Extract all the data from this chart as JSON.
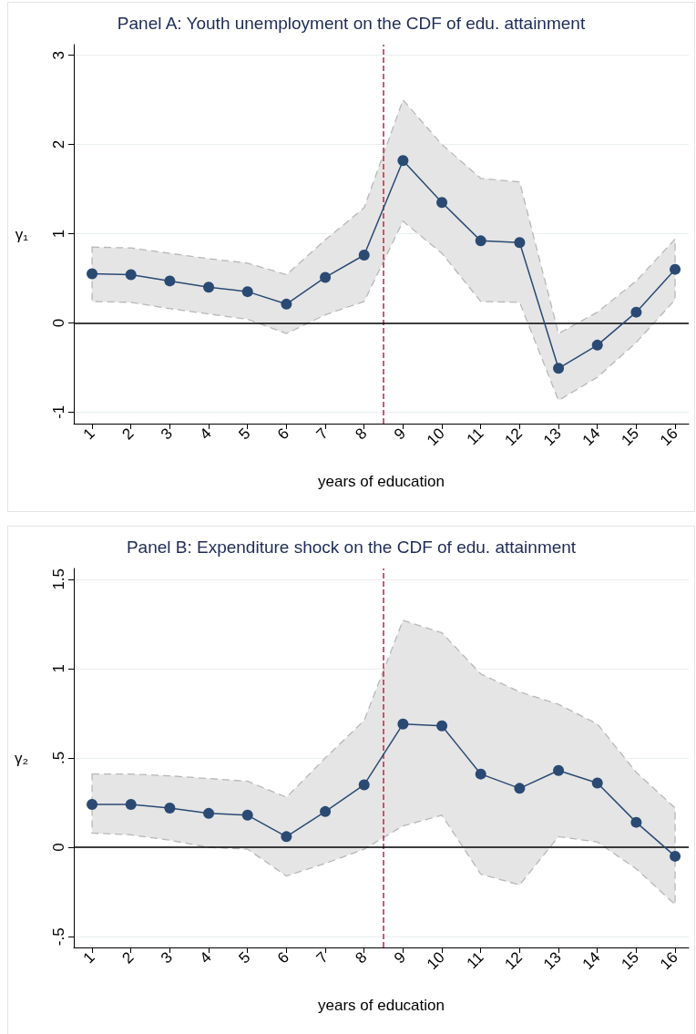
{
  "chart_data": [
    {
      "type": "line",
      "title": "Panel A: Youth unemployment on the CDF of edu. attainment",
      "xlabel": "years of education",
      "ylabel": "γ₁",
      "x": [
        1,
        2,
        3,
        4,
        5,
        6,
        7,
        8,
        9,
        10,
        11,
        12,
        13,
        14,
        15,
        16
      ],
      "series": [
        {
          "color": "#2a4a73",
          "values": [
            0.55,
            0.54,
            0.47,
            0.4,
            0.35,
            0.21,
            0.51,
            0.76,
            1.82,
            1.35,
            0.92,
            0.9,
            -0.51,
            -0.25,
            0.12,
            0.6
          ],
          "lower": [
            0.24,
            0.23,
            0.16,
            0.1,
            0.04,
            -0.12,
            0.09,
            0.24,
            1.14,
            0.78,
            0.24,
            0.23,
            -0.87,
            -0.61,
            -0.22,
            0.26
          ],
          "upper": [
            0.85,
            0.84,
            0.78,
            0.72,
            0.67,
            0.54,
            0.93,
            1.29,
            2.5,
            2.0,
            1.62,
            1.58,
            -0.12,
            0.12,
            0.47,
            0.94
          ]
        }
      ],
      "xlim": [
        0.53,
        16.35
      ],
      "xticks": [
        1,
        2,
        3,
        4,
        5,
        6,
        7,
        8,
        9,
        10,
        11,
        12,
        13,
        14,
        15,
        16
      ],
      "ylim": [
        -1.13,
        3.12
      ],
      "yticks": [
        -1,
        0,
        1,
        2,
        3
      ],
      "ref_lines": [
        {
          "axis": "x",
          "value": 8.5,
          "color": "#c0263a",
          "line_style": "dashed"
        },
        {
          "axis": "y",
          "value": 0,
          "color": "#000000",
          "line_style": "solid"
        }
      ],
      "grid": "y",
      "marker": "circle",
      "line_style": "solid"
    },
    {
      "type": "line",
      "title": "Panel B: Expenditure shock on the CDF of edu. attainment",
      "xlabel": "years of education",
      "ylabel": "γ₂",
      "x": [
        1,
        2,
        3,
        4,
        5,
        6,
        7,
        8,
        9,
        10,
        11,
        12,
        13,
        14,
        15,
        16
      ],
      "series": [
        {
          "color": "#2a4a73",
          "values": [
            0.24,
            0.24,
            0.22,
            0.19,
            0.18,
            0.06,
            0.2,
            0.35,
            0.69,
            0.68,
            0.41,
            0.33,
            0.43,
            0.36,
            0.14,
            -0.05
          ],
          "lower": [
            0.08,
            0.07,
            0.04,
            0.0,
            -0.01,
            -0.16,
            -0.09,
            -0.01,
            0.12,
            0.18,
            -0.15,
            -0.21,
            0.06,
            0.03,
            -0.12,
            -0.32
          ],
          "upper": [
            0.41,
            0.41,
            0.4,
            0.385,
            0.37,
            0.28,
            0.5,
            0.71,
            1.27,
            1.2,
            0.97,
            0.87,
            0.8,
            0.69,
            0.42,
            0.22
          ]
        }
      ],
      "xlim": [
        0.53,
        16.35
      ],
      "xticks": [
        1,
        2,
        3,
        4,
        5,
        6,
        7,
        8,
        9,
        10,
        11,
        12,
        13,
        14,
        15,
        16
      ],
      "ylim": [
        -0.56,
        1.56
      ],
      "yticks": [
        {
          "value": -0.5,
          "label": "-.5"
        },
        0,
        {
          "value": 0.5,
          "label": ".5"
        },
        1,
        1.5
      ],
      "ref_lines": [
        {
          "axis": "x",
          "value": 8.5,
          "color": "#c0263a",
          "line_style": "dashed"
        },
        {
          "axis": "y",
          "value": 0,
          "color": "#000000",
          "line_style": "solid"
        }
      ],
      "grid": "y",
      "marker": "circle",
      "line_style": "solid"
    }
  ]
}
